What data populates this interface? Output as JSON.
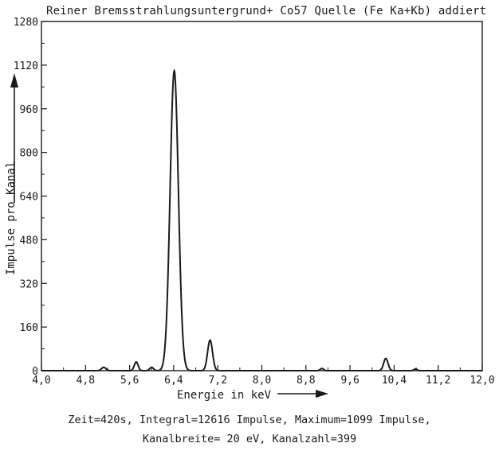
{
  "chart_data": {
    "type": "line",
    "title": "Reiner Bremsstrahlungsuntergrund+ Co57 Quelle (Fe Ka+Kb) addiert",
    "xlabel": "Energie in keV",
    "ylabel": "Impulse pro Kanal",
    "xlim": [
      4.0,
      12.0
    ],
    "ylim": [
      0,
      1280
    ],
    "x_ticks": [
      "4,0",
      "4,8",
      "5,6",
      "6,4",
      "7,2",
      "8,0",
      "8,8",
      "9,6",
      "10,4",
      "11,2",
      "12,0"
    ],
    "y_ticks": [
      "0",
      "160",
      "320",
      "480",
      "640",
      "800",
      "960",
      "1120",
      "1280"
    ],
    "grid": false,
    "series": [
      {
        "peaks": [
          {
            "x": 5.13,
            "height": 12,
            "width": 0.04
          },
          {
            "x": 5.72,
            "height": 32,
            "width": 0.035
          },
          {
            "x": 6.0,
            "height": 12,
            "width": 0.035
          },
          {
            "x": 6.41,
            "height": 1099,
            "width": 0.075
          },
          {
            "x": 7.06,
            "height": 112,
            "width": 0.045
          },
          {
            "x": 9.09,
            "height": 8,
            "width": 0.03
          },
          {
            "x": 10.25,
            "height": 45,
            "width": 0.04
          },
          {
            "x": 10.79,
            "height": 6,
            "width": 0.03
          }
        ]
      }
    ]
  },
  "caption": {
    "line1": "Zeit=420s, Integral=12616   Impulse, Maximum=1099 Impulse,",
    "line2": "Kanalbreite= 20 eV, Kanalzahl=399"
  }
}
